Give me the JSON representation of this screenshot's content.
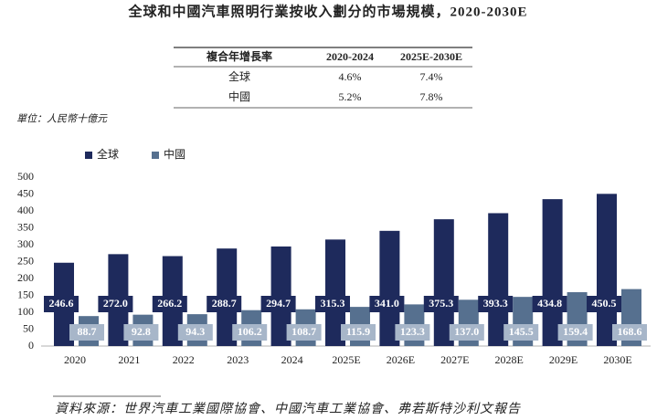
{
  "chart_data": {
    "type": "bar",
    "title": "全球和中國汽車照明行業按收入劃分的市場規模，2020-2030E",
    "table": {
      "headers": [
        "複合年增長率",
        "2020-2024",
        "2025E-2030E"
      ],
      "rows": [
        [
          "全球",
          "4.6%",
          "7.4%"
        ],
        [
          "中國",
          "5.2%",
          "7.8%"
        ]
      ]
    },
    "unit": "單位：人民幣十億元",
    "categories": [
      "2020",
      "2021",
      "2022",
      "2023",
      "2024",
      "2025E",
      "2026E",
      "2027E",
      "2028E",
      "2029E",
      "2030E"
    ],
    "series": [
      {
        "name": "全球",
        "color": "#1e2a5c",
        "label_color": "#1e2a5c",
        "values": [
          246.6,
          272.0,
          266.2,
          288.7,
          294.7,
          315.3,
          341.0,
          375.3,
          393.3,
          434.8,
          450.5
        ],
        "value_labels": [
          "246.6",
          "272.0",
          "266.2",
          "288.7",
          "294.7",
          "315.3",
          "341.0",
          "375.3",
          "393.3",
          "434.8",
          "450.5"
        ]
      },
      {
        "name": "中國",
        "color": "#56708f",
        "label_color": "#a7b6c9",
        "values": [
          88.7,
          92.8,
          94.3,
          106.2,
          108.7,
          115.9,
          123.3,
          137.0,
          145.5,
          159.4,
          168.6
        ],
        "value_labels": [
          "88.7",
          "92.8",
          "94.3",
          "106.2",
          "108.7",
          "115.9",
          "123.3",
          "137.0",
          "145.5",
          "159.4",
          "168.6"
        ]
      }
    ],
    "ylim": [
      0,
      500
    ],
    "yticks": [
      0,
      50,
      100,
      150,
      200,
      250,
      300,
      350,
      400,
      450,
      500
    ],
    "source": "資料來源：世界汽車工業國際協會、中國汽車工業協會、弗若斯特沙利文報告"
  }
}
